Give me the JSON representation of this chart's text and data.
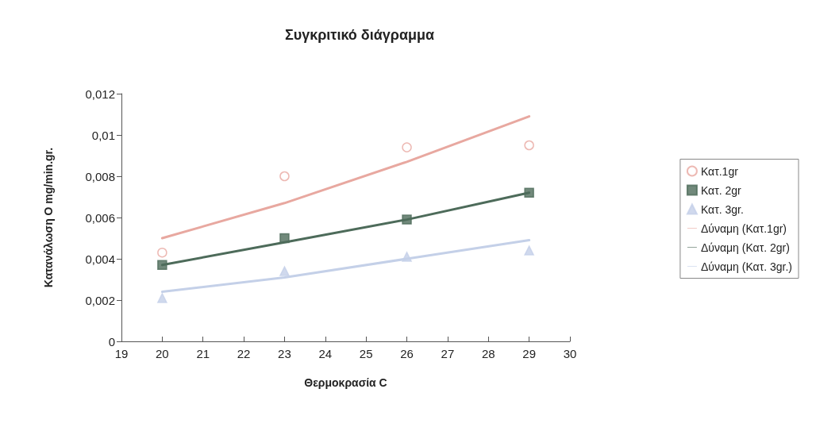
{
  "chart_data": {
    "type": "scatter",
    "title": "Συγκριτικό διάγραμμα",
    "xlabel": "Θερμοκρασία C",
    "ylabel": "Κατανάλωση Ο mg/min.gr.",
    "x": [
      20,
      23,
      26,
      29
    ],
    "series": [
      {
        "name": "Κατ.1gr",
        "type": "scatter",
        "marker": "circle",
        "color": "#e8a8a0",
        "values": [
          0.0043,
          0.008,
          0.0094,
          0.0095
        ]
      },
      {
        "name": "Κατ. 2gr",
        "type": "scatter",
        "marker": "square",
        "color": "#4d6b5a",
        "values": [
          0.0037,
          0.005,
          0.0059,
          0.0072
        ]
      },
      {
        "name": "Κατ. 3gr.",
        "type": "scatter",
        "marker": "triangle",
        "color": "#c4d0e8",
        "values": [
          0.0021,
          0.0034,
          0.0041,
          0.0044
        ]
      },
      {
        "name": "Δύναμη (Κατ.1gr)",
        "type": "line",
        "marker": "none",
        "color": "#e8a8a0",
        "values": [
          0.005,
          0.0067,
          0.0087,
          0.0109
        ]
      },
      {
        "name": "Δύναμη (Κατ. 2gr)",
        "type": "line",
        "marker": "none",
        "color": "#4d6b5a",
        "values": [
          0.0037,
          0.0048,
          0.0059,
          0.0072
        ]
      },
      {
        "name": "Δύναμη (Κατ. 3gr.)",
        "type": "line",
        "marker": "none",
        "color": "#c4d0e8",
        "values": [
          0.0024,
          0.0031,
          0.004,
          0.0049
        ]
      }
    ],
    "xlim": [
      19,
      30
    ],
    "xticks": [
      19,
      20,
      21,
      22,
      23,
      24,
      25,
      26,
      27,
      28,
      29,
      30
    ],
    "ylim": [
      0,
      0.012
    ],
    "yticks": [
      0,
      {
        "value": 0.002,
        "label": "0,002"
      },
      {
        "value": 0.004,
        "label": "0,004"
      },
      {
        "value": 0.006,
        "label": "0,006"
      },
      {
        "value": 0.008,
        "label": "0,008"
      },
      {
        "value": 0.01,
        "label": "0,01"
      },
      {
        "value": 0.012,
        "label": "0,012"
      }
    ],
    "grid": false,
    "legend": "right",
    "line_style": "solid"
  }
}
